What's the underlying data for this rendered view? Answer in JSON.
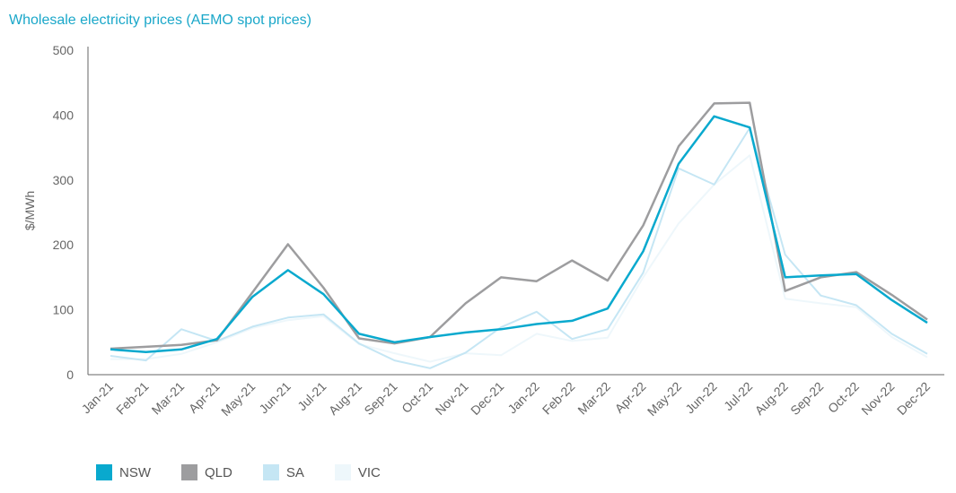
{
  "chart_data": {
    "type": "line",
    "title": "Wholesale electricity prices (AEMO spot prices)",
    "ylabel": "$/MWh",
    "xlabel": "",
    "ylim": [
      0,
      500
    ],
    "yticks": [
      0,
      100,
      200,
      300,
      400,
      500
    ],
    "categories": [
      "Jan-21",
      "Feb-21",
      "Mar-21",
      "Apr-21",
      "May-21",
      "Jun-21",
      "Jul-21",
      "Aug-21",
      "Sep-21",
      "Oct-21",
      "Nov-21",
      "Dec-21",
      "Jan-22",
      "Feb-22",
      "Mar-22",
      "Apr-22",
      "May-22",
      "Jun-22",
      "Jul-22",
      "Aug-22",
      "Sep-22",
      "Oct-22",
      "Nov-22",
      "Dec-22"
    ],
    "series": [
      {
        "name": "VIC",
        "color": "#eef7fb",
        "width": 2,
        "values": [
          24,
          24,
          32,
          50,
          72,
          84,
          90,
          47,
          33,
          20,
          33,
          30,
          63,
          52,
          57,
          150,
          233,
          293,
          338,
          117,
          110,
          104,
          58,
          27
        ]
      },
      {
        "name": "SA",
        "color": "#c5e6f4",
        "width": 2,
        "values": [
          29,
          22,
          70,
          52,
          74,
          88,
          93,
          48,
          22,
          10,
          34,
          73,
          97,
          55,
          70,
          157,
          318,
          293,
          380,
          185,
          122,
          107,
          63,
          32
        ]
      },
      {
        "name": "QLD",
        "color": "#9d9d9f",
        "width": 2.5,
        "values": [
          40,
          43,
          46,
          53,
          127,
          201,
          134,
          56,
          48,
          58,
          110,
          150,
          144,
          176,
          145,
          230,
          352,
          418,
          419,
          129,
          150,
          158,
          123,
          85
        ]
      },
      {
        "name": "NSW",
        "color": "#09a9ce",
        "width": 2.5,
        "values": [
          39,
          35,
          39,
          55,
          120,
          161,
          124,
          63,
          50,
          58,
          65,
          70,
          78,
          83,
          102,
          190,
          325,
          398,
          381,
          150,
          153,
          155,
          115,
          80
        ]
      }
    ],
    "legend": [
      "NSW",
      "QLD",
      "SA",
      "VIC"
    ],
    "legend_placement": "bottom-left",
    "grid": false
  }
}
